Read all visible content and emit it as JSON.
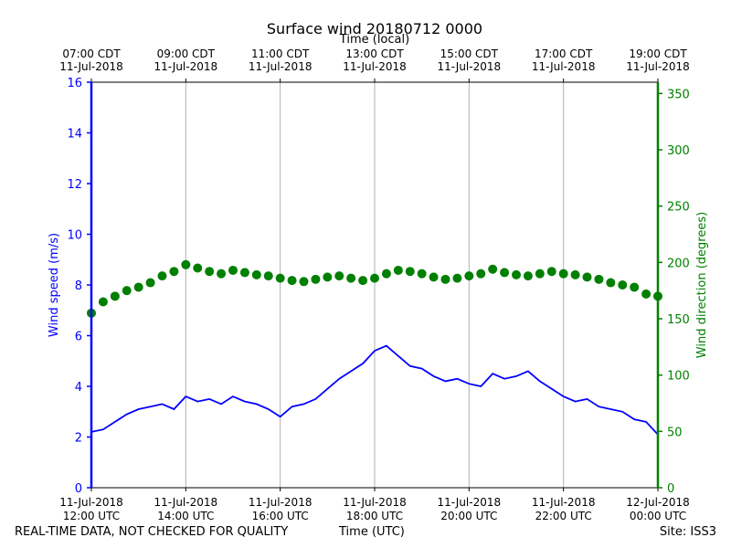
{
  "chart_data": {
    "type": "line",
    "title": "Surface wind 20180712 0000",
    "xlabel": "Time (UTC)",
    "x2label": "Time (local)",
    "ylabel": "Wind speed (m/s)",
    "y2label": "Wind direction (degrees)",
    "xlim": [
      12,
      24
    ],
    "ylim": [
      0,
      16
    ],
    "y2lim": [
      0,
      360
    ],
    "yticks": [
      0,
      2,
      4,
      6,
      8,
      10,
      12,
      14,
      16
    ],
    "y2ticks": [
      0,
      50,
      100,
      150,
      200,
      250,
      300,
      350
    ],
    "grid": "vertical",
    "colors": {
      "speed": "#0000ff",
      "direction": "#008000"
    },
    "xticks_bottom": [
      {
        "x": 12,
        "l1": "11-Jul-2018",
        "l2": "12:00 UTC"
      },
      {
        "x": 14,
        "l1": "11-Jul-2018",
        "l2": "14:00 UTC"
      },
      {
        "x": 16,
        "l1": "11-Jul-2018",
        "l2": "16:00 UTC"
      },
      {
        "x": 18,
        "l1": "11-Jul-2018",
        "l2": "18:00 UTC"
      },
      {
        "x": 20,
        "l1": "11-Jul-2018",
        "l2": "20:00 UTC"
      },
      {
        "x": 22,
        "l1": "11-Jul-2018",
        "l2": "22:00 UTC"
      },
      {
        "x": 24,
        "l1": "12-Jul-2018",
        "l2": "00:00 UTC"
      }
    ],
    "xticks_top": [
      {
        "x": 12,
        "l1": "07:00 CDT",
        "l2": "11-Jul-2018"
      },
      {
        "x": 14,
        "l1": "09:00 CDT",
        "l2": "11-Jul-2018"
      },
      {
        "x": 16,
        "l1": "11:00 CDT",
        "l2": "11-Jul-2018"
      },
      {
        "x": 18,
        "l1": "13:00 CDT",
        "l2": "11-Jul-2018"
      },
      {
        "x": 20,
        "l1": "15:00 CDT",
        "l2": "11-Jul-2018"
      },
      {
        "x": 22,
        "l1": "17:00 CDT",
        "l2": "11-Jul-2018"
      },
      {
        "x": 24,
        "l1": "19:00 CDT",
        "l2": "11-Jul-2018"
      }
    ],
    "series": [
      {
        "name": "Wind speed",
        "axis": "left",
        "style": "line",
        "x": [
          12.0,
          12.25,
          12.5,
          12.75,
          13.0,
          13.25,
          13.5,
          13.75,
          14.0,
          14.25,
          14.5,
          14.75,
          15.0,
          15.25,
          15.5,
          15.75,
          16.0,
          16.25,
          16.5,
          16.75,
          17.0,
          17.25,
          17.5,
          17.75,
          18.0,
          18.25,
          18.5,
          18.75,
          19.0,
          19.25,
          19.5,
          19.75,
          20.0,
          20.25,
          20.5,
          20.75,
          21.0,
          21.25,
          21.5,
          21.75,
          22.0,
          22.25,
          22.5,
          22.75,
          23.0,
          23.25,
          23.5,
          23.75,
          24.0
        ],
        "y": [
          2.2,
          2.3,
          2.6,
          2.9,
          3.1,
          3.2,
          3.3,
          3.1,
          3.6,
          3.4,
          3.5,
          3.3,
          3.6,
          3.4,
          3.3,
          3.1,
          2.8,
          3.2,
          3.3,
          3.5,
          3.9,
          4.3,
          4.6,
          4.9,
          5.4,
          5.6,
          5.2,
          4.8,
          4.7,
          4.4,
          4.2,
          4.3,
          4.1,
          4.0,
          4.5,
          4.3,
          4.4,
          4.6,
          4.2,
          3.9,
          3.6,
          3.4,
          3.5,
          3.2,
          3.1,
          3.0,
          2.7,
          2.6,
          2.1
        ]
      },
      {
        "name": "Wind direction",
        "axis": "right",
        "style": "scatter",
        "x": [
          12.0,
          12.25,
          12.5,
          12.75,
          13.0,
          13.25,
          13.5,
          13.75,
          14.0,
          14.25,
          14.5,
          14.75,
          15.0,
          15.25,
          15.5,
          15.75,
          16.0,
          16.25,
          16.5,
          16.75,
          17.0,
          17.25,
          17.5,
          17.75,
          18.0,
          18.25,
          18.5,
          18.75,
          19.0,
          19.25,
          19.5,
          19.75,
          20.0,
          20.25,
          20.5,
          20.75,
          21.0,
          21.25,
          21.5,
          21.75,
          22.0,
          22.25,
          22.5,
          22.75,
          23.0,
          23.25,
          23.5,
          23.75,
          24.0
        ],
        "y": [
          155,
          165,
          170,
          175,
          178,
          182,
          188,
          192,
          198,
          195,
          192,
          190,
          193,
          191,
          189,
          188,
          186,
          184,
          183,
          185,
          187,
          188,
          186,
          184,
          186,
          190,
          193,
          192,
          190,
          187,
          185,
          186,
          188,
          190,
          194,
          191,
          189,
          188,
          190,
          192,
          190,
          189,
          187,
          185,
          182,
          180,
          178,
          172,
          170
        ]
      }
    ]
  },
  "footer": {
    "left": "REAL-TIME DATA, NOT CHECKED FOR QUALITY",
    "center": "Time (UTC)",
    "right": "Site: ISS3"
  }
}
